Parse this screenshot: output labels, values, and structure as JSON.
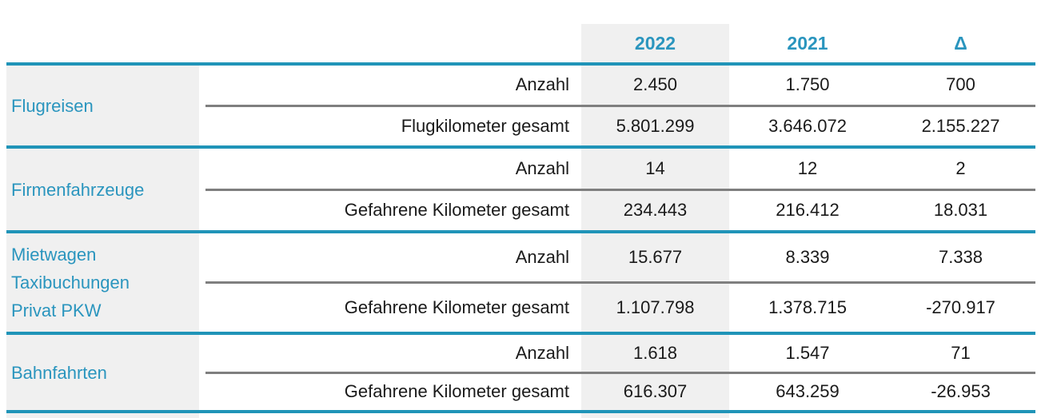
{
  "table": {
    "column_headers": [
      "2022",
      "2021",
      "Δ"
    ],
    "groups": [
      {
        "category_lines": [
          "Flugreisen"
        ],
        "rows": [
          {
            "metric": "Anzahl",
            "values": [
              "2.450",
              "1.750",
              "700"
            ]
          },
          {
            "metric": "Flugkilometer gesamt",
            "values": [
              "5.801.299",
              "3.646.072",
              "2.155.227"
            ]
          }
        ]
      },
      {
        "category_lines": [
          "Firmenfahrzeuge"
        ],
        "rows": [
          {
            "metric": "Anzahl",
            "values": [
              "14",
              "12",
              "2"
            ]
          },
          {
            "metric": "Gefahrene Kilometer gesamt",
            "values": [
              "234.443",
              "216.412",
              "18.031"
            ]
          }
        ]
      },
      {
        "category_lines": [
          "Mietwagen",
          "Taxibuchungen",
          "Privat PKW"
        ],
        "rows": [
          {
            "metric": "Anzahl",
            "values": [
              "15.677",
              "8.339",
              "7.338"
            ]
          },
          {
            "metric": "Gefahrene Kilometer gesamt",
            "values": [
              "1.107.798",
              "1.378.715",
              "-270.917"
            ]
          }
        ]
      },
      {
        "category_lines": [
          "Bahnfahrten"
        ],
        "rows": [
          {
            "metric": "Anzahl",
            "values": [
              "1.618",
              "1.547",
              "71"
            ]
          },
          {
            "metric": "Gefahrene Kilometer gesamt",
            "values": [
              "616.307",
              "643.259",
              "-26.953"
            ]
          }
        ]
      }
    ]
  },
  "colors": {
    "accent_teal_text": "#2A95BE",
    "separator_teal": "#2094B8",
    "row_divider_gray": "#7F7F7F",
    "highlight_band": "#F0F0F0",
    "body_text": "#1A1A1A"
  }
}
